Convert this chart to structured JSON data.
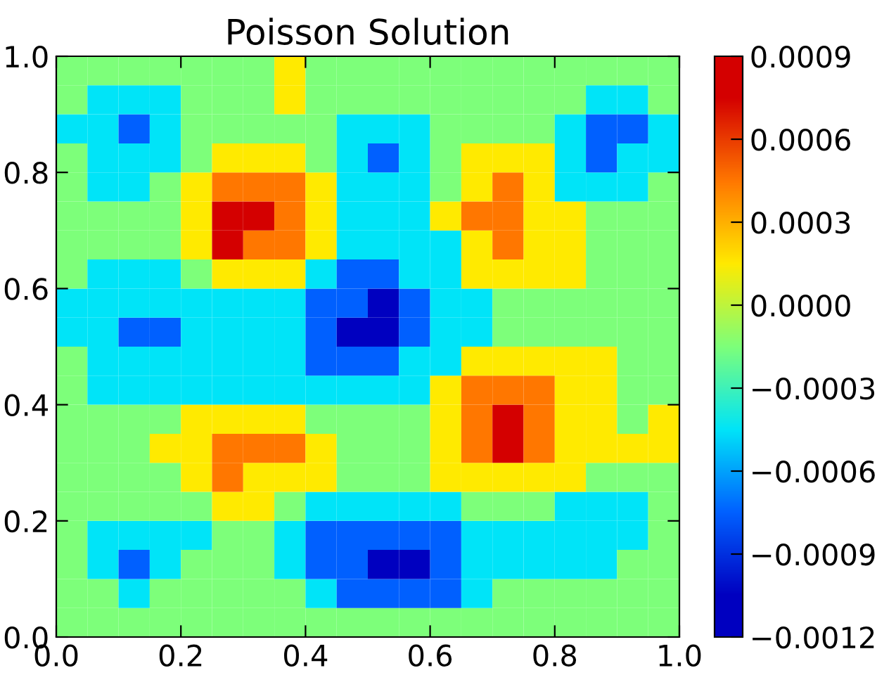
{
  "chart_data": {
    "type": "heatmap",
    "title": "Poisson Solution",
    "xlim": [
      0.0,
      1.0
    ],
    "ylim": [
      0.0,
      1.0
    ],
    "xticks": [
      {
        "value": 0.0,
        "label": "0.0"
      },
      {
        "value": 0.2,
        "label": "0.2"
      },
      {
        "value": 0.4,
        "label": "0.4"
      },
      {
        "value": 0.6,
        "label": "0.6"
      },
      {
        "value": 0.8,
        "label": "0.8"
      },
      {
        "value": 1.0,
        "label": "1.0"
      }
    ],
    "yticks": [
      {
        "value": 0.0,
        "label": "0.0"
      },
      {
        "value": 0.2,
        "label": "0.2"
      },
      {
        "value": 0.4,
        "label": "0.4"
      },
      {
        "value": 0.6,
        "label": "0.6"
      },
      {
        "value": 0.8,
        "label": "0.8"
      },
      {
        "value": 1.0,
        "label": "1.0"
      }
    ],
    "clim": [
      -0.0012,
      0.0009
    ],
    "cticks": [
      {
        "value": -0.0012,
        "label": "−0.0012"
      },
      {
        "value": -0.0009,
        "label": "−0.0009"
      },
      {
        "value": -0.0006,
        "label": "−0.0006"
      },
      {
        "value": -0.0003,
        "label": "−0.0003"
      },
      {
        "value": 0.0,
        "label": "0.0000"
      },
      {
        "value": 0.0003,
        "label": "0.0003"
      },
      {
        "value": 0.0006,
        "label": "0.0006"
      },
      {
        "value": 0.0009,
        "label": "0.0009"
      }
    ],
    "grid": false,
    "colors": [
      "#0000c0",
      "#0060ff",
      "#00e4f8",
      "#7dff7a",
      "#ffea00",
      "#ff7700",
      "#d40000"
    ],
    "cells": [
      [
        -0.00015,
        -0.00015,
        -0.00015,
        -0.00015,
        -0.00015,
        -0.00015,
        -0.00015,
        0.00015,
        -0.00015,
        -0.00015,
        -0.00015,
        -0.00015,
        -0.00015,
        -0.00015,
        -0.00015,
        -0.00015,
        -0.00015,
        -0.00015,
        -0.00015,
        -0.00015
      ],
      [
        -0.00015,
        -0.00045,
        -0.00045,
        -0.00045,
        -0.00015,
        -0.00015,
        -0.00015,
        0.00015,
        -0.00015,
        -0.00015,
        -0.00015,
        -0.00015,
        -0.00015,
        -0.00015,
        -0.00015,
        -0.00015,
        -0.00015,
        -0.00045,
        -0.00045,
        -0.00015
      ],
      [
        -0.00045,
        -0.00045,
        -0.00075,
        -0.00045,
        -0.00015,
        -0.00015,
        -0.00015,
        -0.00015,
        -0.00015,
        -0.00045,
        -0.00045,
        -0.00045,
        -0.00015,
        -0.00015,
        -0.00015,
        -0.00015,
        -0.00045,
        -0.00075,
        -0.00075,
        -0.00045
      ],
      [
        -0.00015,
        -0.00045,
        -0.00045,
        -0.00045,
        -0.00015,
        0.00015,
        0.00015,
        0.00015,
        -0.00015,
        -0.00045,
        -0.00075,
        -0.00045,
        -0.00015,
        0.00015,
        0.00015,
        0.00015,
        -0.00045,
        -0.00075,
        -0.00045,
        -0.00045
      ],
      [
        -0.00015,
        -0.00045,
        -0.00045,
        -0.00015,
        0.00015,
        0.00045,
        0.00045,
        0.00045,
        0.00015,
        -0.00045,
        -0.00045,
        -0.00045,
        -0.00015,
        0.00015,
        0.00045,
        0.00015,
        -0.00045,
        -0.00045,
        -0.00045,
        -0.00015
      ],
      [
        -0.00015,
        -0.00015,
        -0.00015,
        -0.00015,
        0.00015,
        0.00075,
        0.00075,
        0.00045,
        0.00015,
        -0.00045,
        -0.00045,
        -0.00045,
        0.00015,
        0.00045,
        0.00045,
        0.00015,
        0.00015,
        -0.00015,
        -0.00015,
        -0.00015
      ],
      [
        -0.00015,
        -0.00015,
        -0.00015,
        -0.00015,
        0.00015,
        0.00075,
        0.00045,
        0.00045,
        0.00015,
        -0.00045,
        -0.00045,
        -0.00045,
        -0.00045,
        0.00015,
        0.00045,
        0.00015,
        0.00015,
        -0.00015,
        -0.00015,
        -0.00015
      ],
      [
        -0.00015,
        -0.00045,
        -0.00045,
        -0.00045,
        -0.00015,
        0.00015,
        0.00015,
        0.00015,
        -0.00045,
        -0.00075,
        -0.00075,
        -0.00045,
        -0.00045,
        0.00015,
        0.00015,
        0.00015,
        0.00015,
        -0.00015,
        -0.00015,
        -0.00015
      ],
      [
        -0.00045,
        -0.00045,
        -0.00045,
        -0.00045,
        -0.00045,
        -0.00045,
        -0.00045,
        -0.00045,
        -0.00075,
        -0.00075,
        -0.00105,
        -0.00075,
        -0.00045,
        -0.00045,
        -0.00015,
        -0.00015,
        -0.00015,
        -0.00015,
        -0.00015,
        -0.00015
      ],
      [
        -0.00045,
        -0.00045,
        -0.00075,
        -0.00075,
        -0.00045,
        -0.00045,
        -0.00045,
        -0.00045,
        -0.00075,
        -0.00105,
        -0.00105,
        -0.00075,
        -0.00045,
        -0.00045,
        -0.00015,
        -0.00015,
        -0.00015,
        -0.00015,
        -0.00015,
        -0.00015
      ],
      [
        -0.00015,
        -0.00045,
        -0.00045,
        -0.00045,
        -0.00045,
        -0.00045,
        -0.00045,
        -0.00045,
        -0.00075,
        -0.00075,
        -0.00075,
        -0.00045,
        -0.00045,
        0.00015,
        0.00015,
        0.00015,
        0.00015,
        0.00015,
        -0.00015,
        -0.00015
      ],
      [
        -0.00015,
        -0.00045,
        -0.00045,
        -0.00045,
        -0.00045,
        -0.00045,
        -0.00045,
        -0.00045,
        -0.00045,
        -0.00045,
        -0.00045,
        -0.00045,
        0.00015,
        0.00045,
        0.00045,
        0.00045,
        0.00015,
        0.00015,
        -0.00015,
        -0.00015
      ],
      [
        -0.00015,
        -0.00015,
        -0.00015,
        -0.00015,
        0.00015,
        0.00015,
        0.00015,
        0.00015,
        -0.00015,
        -0.00015,
        -0.00015,
        -0.00015,
        0.00015,
        0.00045,
        0.00075,
        0.00045,
        0.00015,
        0.00015,
        -0.00015,
        0.00015
      ],
      [
        -0.00015,
        -0.00015,
        -0.00015,
        0.00015,
        0.00015,
        0.00045,
        0.00045,
        0.00045,
        0.00015,
        -0.00015,
        -0.00015,
        -0.00015,
        0.00015,
        0.00045,
        0.00075,
        0.00045,
        0.00015,
        0.00015,
        0.00015,
        0.00015
      ],
      [
        -0.00015,
        -0.00015,
        -0.00015,
        -0.00015,
        0.00015,
        0.00045,
        0.00015,
        0.00015,
        0.00015,
        -0.00015,
        -0.00015,
        -0.00015,
        0.00015,
        0.00015,
        0.00015,
        0.00015,
        0.00015,
        -0.00015,
        -0.00015,
        -0.00015
      ],
      [
        -0.00015,
        -0.00015,
        -0.00015,
        -0.00015,
        -0.00015,
        0.00015,
        0.00015,
        -0.00015,
        -0.00045,
        -0.00045,
        -0.00045,
        -0.00045,
        -0.00045,
        -0.00015,
        -0.00015,
        -0.00015,
        -0.00045,
        -0.00045,
        -0.00045,
        -0.00015
      ],
      [
        -0.00015,
        -0.00045,
        -0.00045,
        -0.00045,
        -0.00045,
        -0.00015,
        -0.00015,
        -0.00045,
        -0.00075,
        -0.00075,
        -0.00075,
        -0.00075,
        -0.00075,
        -0.00045,
        -0.00045,
        -0.00045,
        -0.00045,
        -0.00045,
        -0.00045,
        -0.00015
      ],
      [
        -0.00015,
        -0.00045,
        -0.00075,
        -0.00045,
        -0.00015,
        -0.00015,
        -0.00015,
        -0.00045,
        -0.00075,
        -0.00075,
        -0.00105,
        -0.00105,
        -0.00075,
        -0.00045,
        -0.00045,
        -0.00045,
        -0.00045,
        -0.00045,
        -0.00015,
        -0.00015
      ],
      [
        -0.00015,
        -0.00015,
        -0.00045,
        -0.00015,
        -0.00015,
        -0.00015,
        -0.00015,
        -0.00015,
        -0.00045,
        -0.00075,
        -0.00075,
        -0.00075,
        -0.00075,
        -0.00045,
        -0.00015,
        -0.00015,
        -0.00015,
        -0.00015,
        -0.00015,
        -0.00015
      ],
      [
        -0.00015,
        -0.00015,
        -0.00015,
        -0.00015,
        -0.00015,
        -0.00015,
        -0.00015,
        -0.00015,
        -0.00015,
        -0.00015,
        -0.00015,
        -0.00015,
        -0.00015,
        -0.00015,
        -0.00015,
        -0.00015,
        -0.00015,
        -0.00015,
        -0.00015,
        -0.00015
      ]
    ]
  }
}
